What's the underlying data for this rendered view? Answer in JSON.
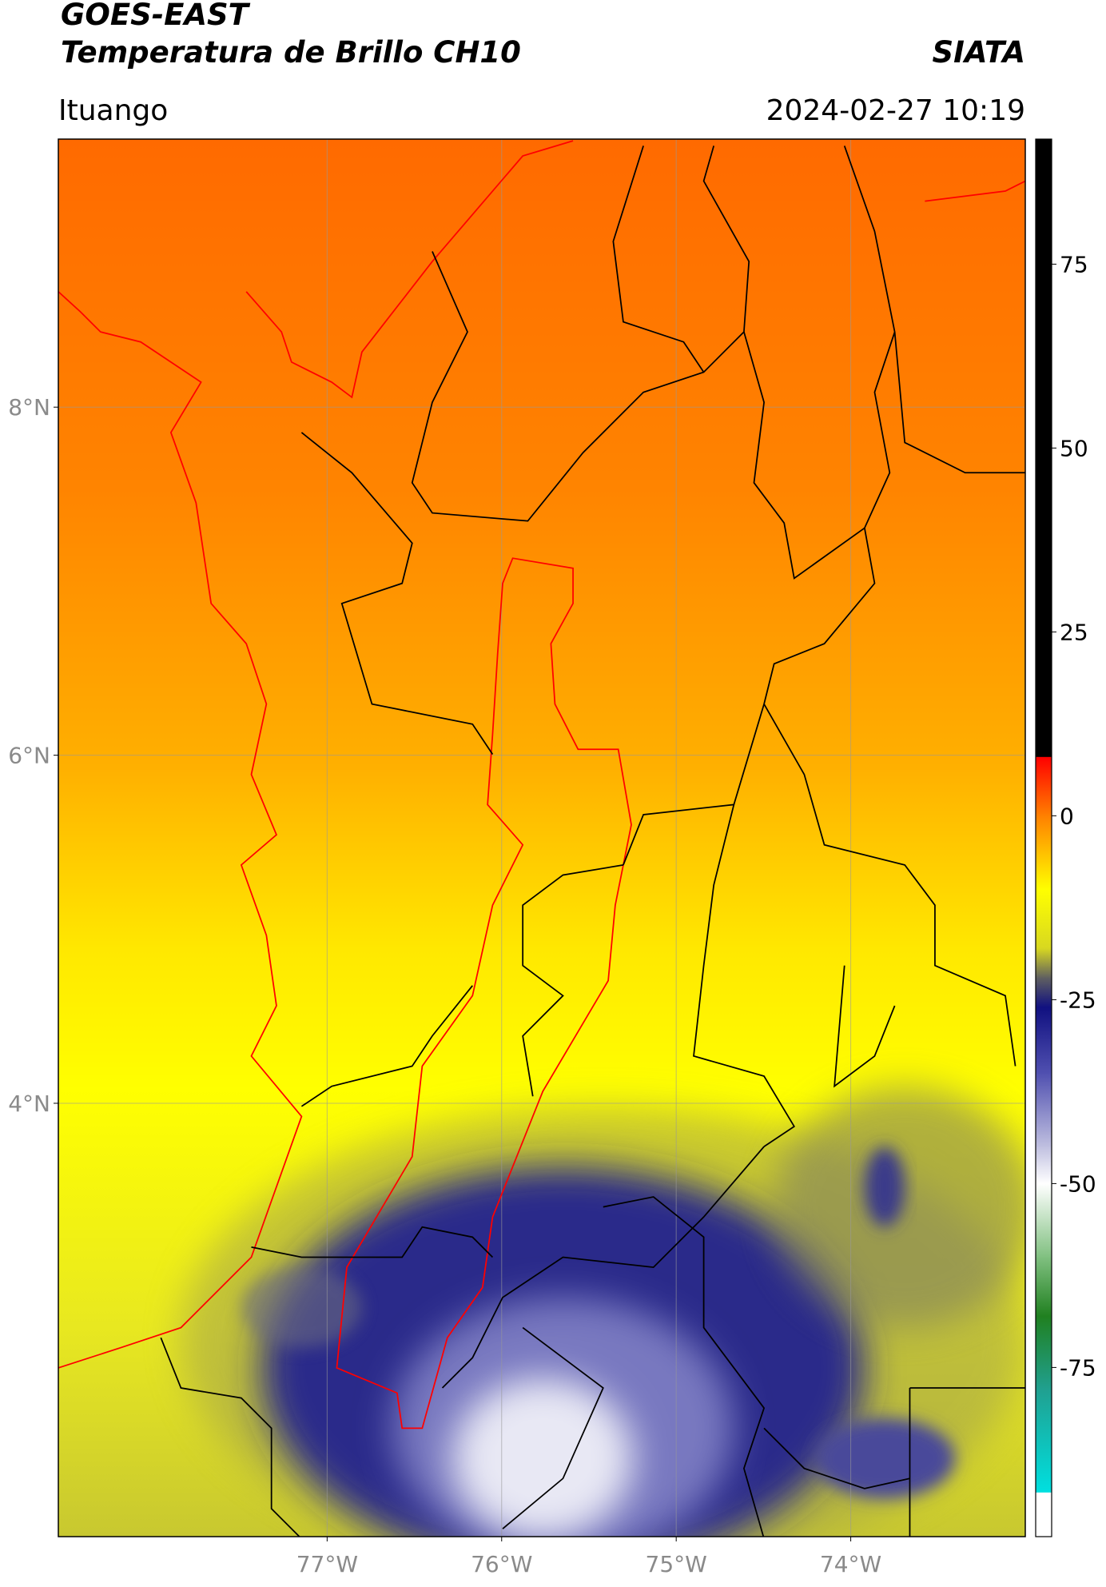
{
  "header": {
    "title": "GOES-EAST",
    "subtitle": "Temperatura de Brillo CH10",
    "source": "SIATA",
    "location": "Ituango",
    "timestamp": "2024-02-27 10:19"
  },
  "map": {
    "xlim": [
      -78.54,
      -73.0
    ],
    "ylim": [
      1.51,
      9.54
    ],
    "xticks": [
      {
        "value": -77,
        "label": "77°W"
      },
      {
        "value": -76,
        "label": "76°W"
      },
      {
        "value": -75,
        "label": "75°W"
      },
      {
        "value": -74,
        "label": "74°W"
      }
    ],
    "yticks": [
      {
        "value": 4,
        "label": "4°N"
      },
      {
        "value": 6,
        "label": "6°N"
      },
      {
        "value": 8,
        "label": "8°N"
      }
    ],
    "grid": true
  },
  "colorbar": {
    "ylim": [
      -98,
      92
    ],
    "yticks": [
      75,
      50,
      25,
      0,
      -25,
      -50,
      -75
    ],
    "colormap": [
      {
        "value": 92,
        "color": "#000000"
      },
      {
        "value": 8,
        "color": "#000000"
      },
      {
        "value": 8,
        "color": "#ff0000"
      },
      {
        "value": 0,
        "color": "#ff8000"
      },
      {
        "value": -10,
        "color": "#ffff00"
      },
      {
        "value": -18,
        "color": "#d8d820"
      },
      {
        "value": -22,
        "color": "#606060"
      },
      {
        "value": -26,
        "color": "#101080"
      },
      {
        "value": -35,
        "color": "#5050b0"
      },
      {
        "value": -45,
        "color": "#c0c0e0"
      },
      {
        "value": -50,
        "color": "#ffffff"
      },
      {
        "value": -60,
        "color": "#80c080"
      },
      {
        "value": -68,
        "color": "#208020"
      },
      {
        "value": -78,
        "color": "#20a090"
      },
      {
        "value": -92,
        "color": "#00e0e0"
      },
      {
        "value": -92,
        "color": "#ffffff"
      },
      {
        "value": -98,
        "color": "#ffffff"
      }
    ]
  }
}
